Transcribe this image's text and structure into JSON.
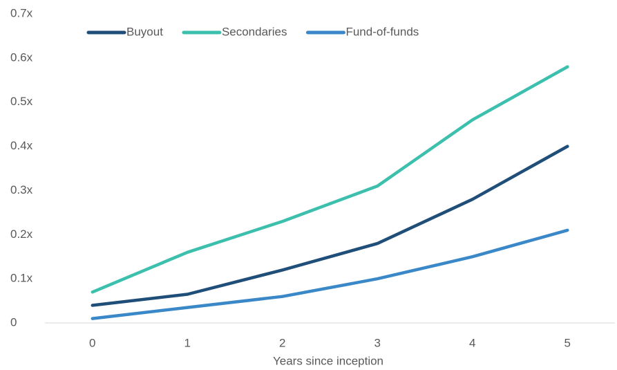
{
  "chart_data": {
    "type": "line",
    "x_label": "Years since inception",
    "x": [
      0,
      1,
      2,
      3,
      4,
      5
    ],
    "xlim": [
      -0.5,
      5.5
    ],
    "xticks": [
      0,
      1,
      2,
      3,
      4,
      5
    ],
    "ylim": [
      0,
      0.7
    ],
    "yticks": [
      0,
      {
        "value": 0.1,
        "label": "0.1x"
      },
      {
        "value": 0.2,
        "label": "0.2x"
      },
      {
        "value": 0.3,
        "label": "0.3x"
      },
      {
        "value": 0.4,
        "label": "0.4x"
      },
      {
        "value": 0.5,
        "label": "0.5x"
      },
      {
        "value": 0.6,
        "label": "0.6x"
      },
      {
        "value": 0.7,
        "label": "0.7x"
      }
    ],
    "grid": false,
    "legend": "top",
    "series": [
      {
        "name": "Buyout",
        "color": "#1f4e79",
        "values": [
          0.04,
          0.065,
          0.12,
          0.18,
          0.28,
          0.4
        ]
      },
      {
        "name": "Secondaries",
        "color": "#3dbfad",
        "values": [
          0.07,
          0.16,
          0.23,
          0.31,
          0.46,
          0.58
        ]
      },
      {
        "name": "Fund-of-funds",
        "color": "#3a88c8",
        "values": [
          0.01,
          0.035,
          0.06,
          0.1,
          0.15,
          0.21
        ]
      }
    ]
  }
}
